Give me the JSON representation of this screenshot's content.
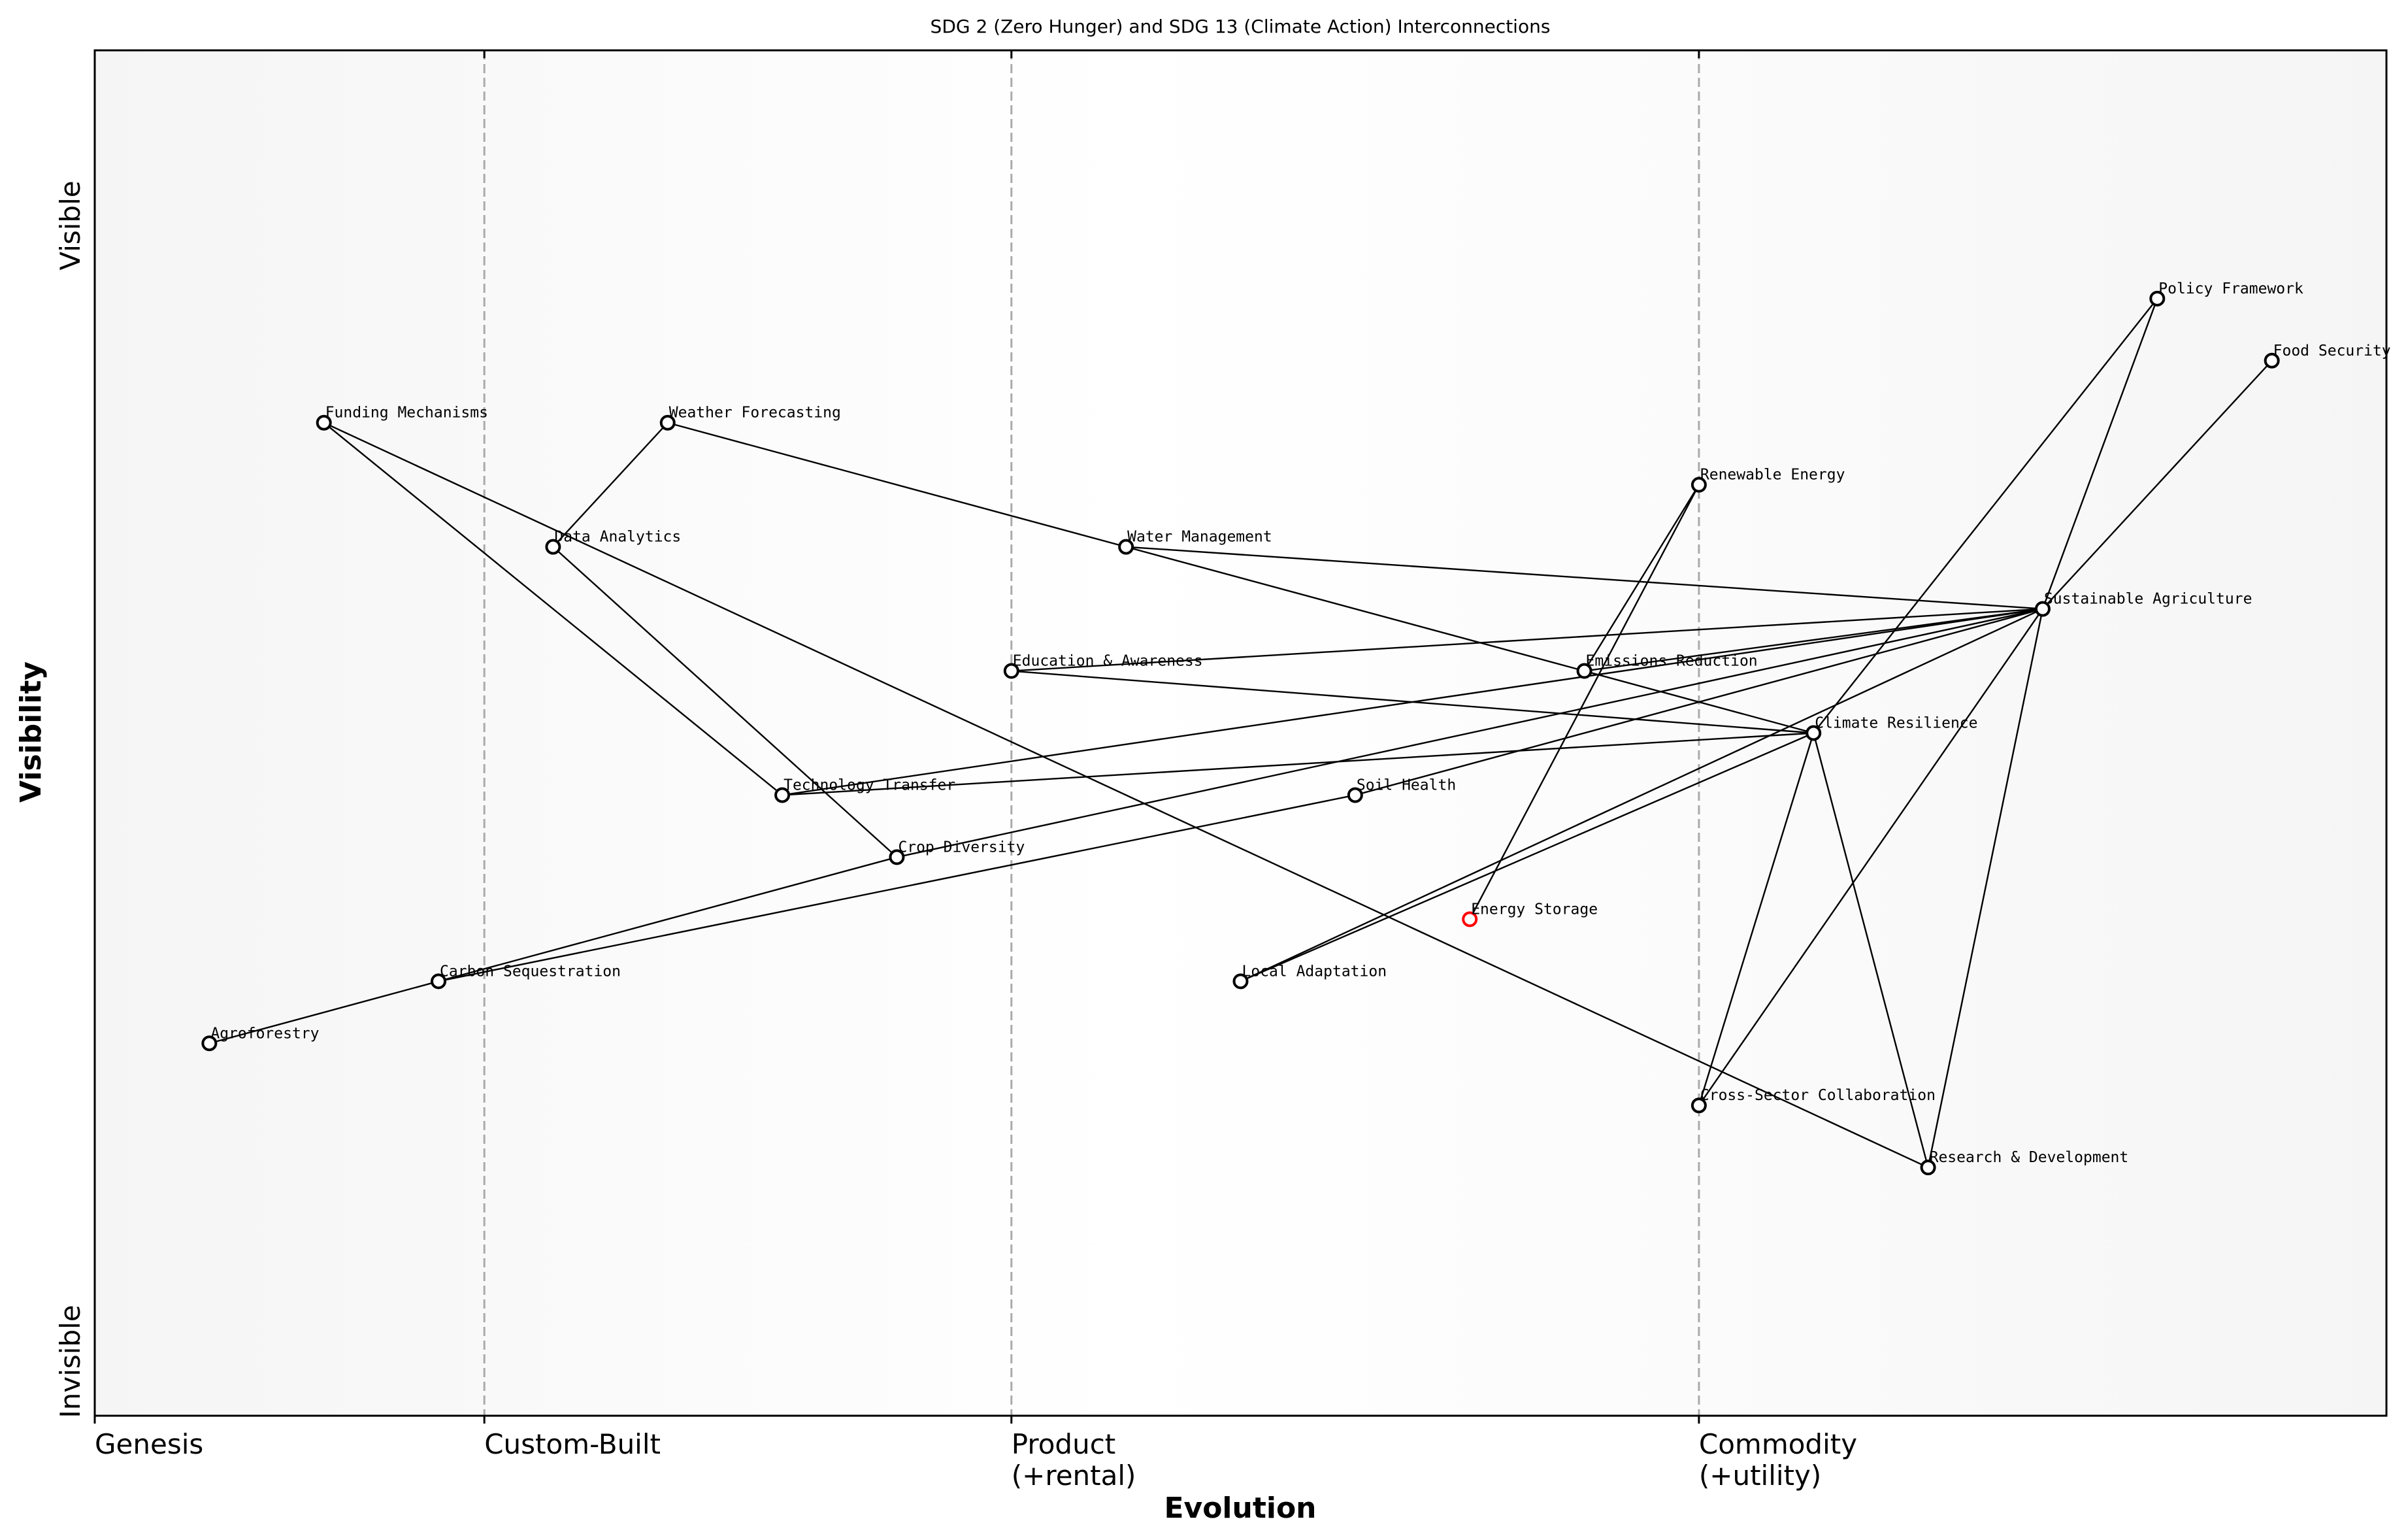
{
  "title": "SDG 2 (Zero Hunger) and SDG 13 (Climate Action) Interconnections",
  "chart_data": {
    "type": "wardley-map",
    "title": "SDG 2 (Zero Hunger) and SDG 13 (Climate Action) Interconnections",
    "xlabel": "Evolution",
    "ylabel": "Visibility",
    "xlim": [
      0,
      1
    ],
    "ylim": [
      0,
      1.1
    ],
    "grid": false,
    "stage_ticks": [
      {
        "x": 0,
        "label": "Genesis"
      },
      {
        "x": 0.17,
        "label": "Custom-Built"
      },
      {
        "x": 0.4,
        "label": "Product\n(+rental)"
      },
      {
        "x": 0.7,
        "label": "Commodity\n(+utility)"
      }
    ],
    "stage_dividers": [
      0.17,
      0.4,
      0.7
    ],
    "y_labels": {
      "top": "Visible",
      "bottom": "Invisible"
    },
    "colors": {
      "node": "#000000",
      "highlight": "#ff0000",
      "divider": "#aaaaaa",
      "band_edge": "#f5f5f5",
      "band_mid": "#ffffff"
    },
    "nodes": [
      {
        "name": "Sustainable Agriculture",
        "x": 0.85,
        "y": 0.65
      },
      {
        "name": "Food Security",
        "x": 0.95,
        "y": 0.85
      },
      {
        "name": "Policy Framework",
        "x": 0.9,
        "y": 0.9
      },
      {
        "name": "Renewable Energy",
        "x": 0.7,
        "y": 0.75
      },
      {
        "name": "Water Management",
        "x": 0.45,
        "y": 0.7
      },
      {
        "name": "Data Analytics",
        "x": 0.2,
        "y": 0.7
      },
      {
        "name": "Funding Mechanisms",
        "x": 0.1,
        "y": 0.8
      },
      {
        "name": "Weather Forecasting",
        "x": 0.25,
        "y": 0.8
      },
      {
        "name": "Education & Awareness",
        "x": 0.4,
        "y": 0.6
      },
      {
        "name": "Emissions Reduction",
        "x": 0.65,
        "y": 0.6
      },
      {
        "name": "Climate Resilience",
        "x": 0.75,
        "y": 0.55
      },
      {
        "name": "Technology Transfer",
        "x": 0.3,
        "y": 0.5
      },
      {
        "name": "Soil Health",
        "x": 0.55,
        "y": 0.5
      },
      {
        "name": "Crop Diversity",
        "x": 0.35,
        "y": 0.45
      },
      {
        "name": "Energy Storage",
        "x": 0.6,
        "y": 0.4,
        "highlight": true
      },
      {
        "name": "Carbon Sequestration",
        "x": 0.15,
        "y": 0.35
      },
      {
        "name": "Local Adaptation",
        "x": 0.5,
        "y": 0.35
      },
      {
        "name": "Agroforestry",
        "x": 0.05,
        "y": 0.3
      },
      {
        "name": "Cross-Sector Collaboration",
        "x": 0.7,
        "y": 0.25
      },
      {
        "name": "Research & Development",
        "x": 0.8,
        "y": 0.2
      }
    ],
    "edges": [
      [
        "Funding Mechanisms",
        "Technology Transfer"
      ],
      [
        "Funding Mechanisms",
        "Research & Development"
      ],
      [
        "Weather Forecasting",
        "Data Analytics"
      ],
      [
        "Weather Forecasting",
        "Water Management"
      ],
      [
        "Data Analytics",
        "Crop Diversity"
      ],
      [
        "Water Management",
        "Sustainable Agriculture"
      ],
      [
        "Water Management",
        "Climate Resilience"
      ],
      [
        "Education & Awareness",
        "Sustainable Agriculture"
      ],
      [
        "Education & Awareness",
        "Climate Resilience"
      ],
      [
        "Technology Transfer",
        "Sustainable Agriculture"
      ],
      [
        "Technology Transfer",
        "Climate Resilience"
      ],
      [
        "Crop Diversity",
        "Sustainable Agriculture"
      ],
      [
        "Carbon Sequestration",
        "Crop Diversity"
      ],
      [
        "Carbon Sequestration",
        "Soil Health"
      ],
      [
        "Agroforestry",
        "Carbon Sequestration"
      ],
      [
        "Soil Health",
        "Sustainable Agriculture"
      ],
      [
        "Local Adaptation",
        "Sustainable Agriculture"
      ],
      [
        "Local Adaptation",
        "Climate Resilience"
      ],
      [
        "Energy Storage",
        "Renewable Energy"
      ],
      [
        "Renewable Energy",
        "Emissions Reduction"
      ],
      [
        "Emissions Reduction",
        "Sustainable Agriculture"
      ],
      [
        "Climate Resilience",
        "Cross-Sector Collaboration"
      ],
      [
        "Climate Resilience",
        "Research & Development"
      ],
      [
        "Climate Resilience",
        "Policy Framework"
      ],
      [
        "Sustainable Agriculture",
        "Policy Framework"
      ],
      [
        "Sustainable Agriculture",
        "Food Security"
      ],
      [
        "Sustainable Agriculture",
        "Research & Development"
      ],
      [
        "Sustainable Agriculture",
        "Cross-Sector Collaboration"
      ]
    ]
  }
}
